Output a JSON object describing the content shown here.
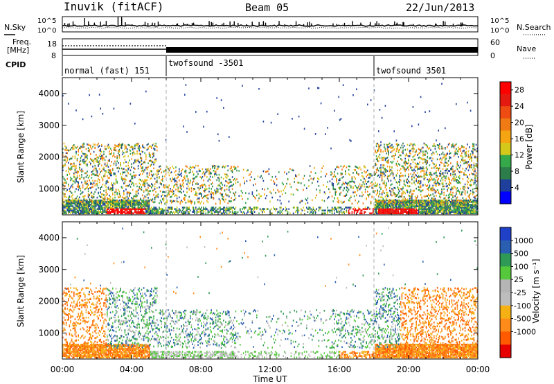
{
  "header": {
    "station": "Inuvik (fitACF)",
    "beam": "Beam 05",
    "date": "22/Jun/2013"
  },
  "noise_panel": {
    "left_label": "N.Sky",
    "right_label": "N.Search",
    "left_ticks": [
      "10^5",
      "10^0"
    ],
    "right_ticks": [
      "10^5",
      "10^0"
    ]
  },
  "freq_panel": {
    "left_label_line1": "Freq.",
    "left_label_line2": "[MHz]",
    "left_ticks": [
      "18",
      "8"
    ],
    "right_label": "Nave",
    "right_ticks": [
      "60",
      "0"
    ]
  },
  "cpid": {
    "label": "CPID",
    "segments": [
      {
        "text": "normal (fast) 151",
        "start_h": 0
      },
      {
        "text": "twofsound -3501",
        "start_h": 6
      },
      {
        "text": "twofsound 3501",
        "start_h": 18
      }
    ]
  },
  "x_axis": {
    "title": "Time UT",
    "ticks": [
      "00:00",
      "04:00",
      "08:00",
      "12:00",
      "16:00",
      "20:00",
      "00:00"
    ]
  },
  "colors": {
    "power": [
      "#0000ff",
      "#1e3f9c",
      "#2d7d4a",
      "#35a84a",
      "#d4c81a",
      "#f6a512",
      "#f07a14",
      "#ee4c12",
      "#e41a10",
      "#ff0000"
    ],
    "velocity": [
      "#e60000",
      "#ff5a00",
      "#ff8c1a",
      "#f5b014",
      "#bdbdbd",
      "#b5b5b5",
      "#55c83c",
      "#2e9a55",
      "#2a5eb0",
      "#2040c8"
    ]
  },
  "chart_data": [
    {
      "type": "heatmap",
      "name": "power",
      "ylabel": "Slant Range [km]",
      "yticks": [
        "4000",
        "3000",
        "2000",
        "1000"
      ],
      "ylim": [
        180,
        4500
      ],
      "xlim_hours": [
        0,
        24
      ],
      "colorbar_label": "Power [dB]",
      "colorbar_ticks": [
        "28",
        "24",
        "20",
        "16",
        "12",
        "8",
        "4"
      ],
      "colorbar_range": [
        0,
        30
      ]
    },
    {
      "type": "heatmap",
      "name": "velocity",
      "ylabel": "Slant Range [km]",
      "yticks": [
        "4000",
        "3000",
        "2000",
        "1000"
      ],
      "ylim": [
        180,
        4500
      ],
      "xlim_hours": [
        0,
        24
      ],
      "colorbar_label": "Velocity [m s⁻¹]",
      "colorbar_ticks": [
        "1000",
        "500",
        "100",
        "25",
        "-25",
        "-100",
        "-500",
        "-1000"
      ]
    }
  ]
}
